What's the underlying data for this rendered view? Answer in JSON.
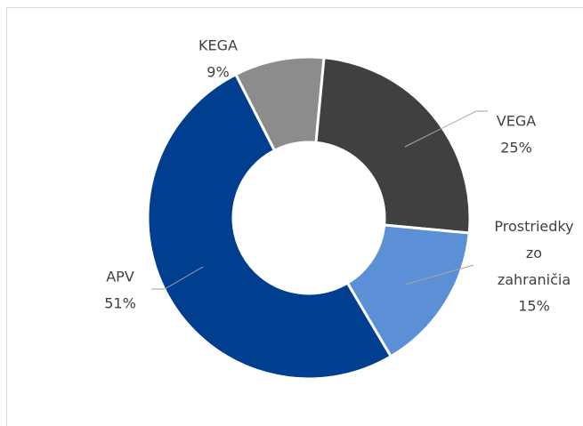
{
  "chart_data": {
    "type": "donut",
    "categories": [
      "KEGA",
      "VEGA",
      "Prostriedky zo zahraničia",
      "APV"
    ],
    "values": [
      9,
      25,
      15,
      51
    ],
    "value_labels": [
      "9%",
      "25%",
      "15%",
      "51%"
    ],
    "colors": [
      "#8c8c8c",
      "#404040",
      "#5b8fd6",
      "#003f8f"
    ]
  }
}
